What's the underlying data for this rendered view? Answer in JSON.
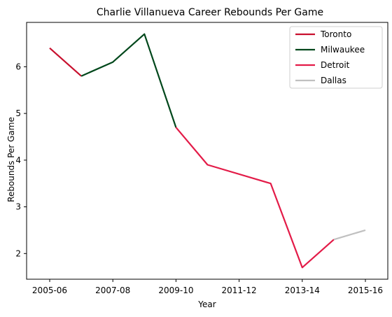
{
  "chart_data": {
    "type": "line",
    "title": "Charlie Villanueva Career Rebounds Per Game",
    "xlabel": "Year",
    "ylabel": "Rebounds Per Game",
    "x_tick_labels": [
      "2005-06",
      "2007-08",
      "2009-10",
      "2011-12",
      "2013-14",
      "2015-16"
    ],
    "y_ticks": [
      2,
      3,
      4,
      5,
      6
    ],
    "ylim": [
      1.45,
      6.95
    ],
    "legend_position": "top-right",
    "series": [
      {
        "name": "Toronto",
        "color": "#c8102e",
        "points": [
          {
            "x": "2005-06",
            "y": 6.4
          },
          {
            "x": "2006-07",
            "y": 5.8
          }
        ]
      },
      {
        "name": "Milwaukee",
        "color": "#00471b",
        "points": [
          {
            "x": "2006-07",
            "y": 5.8
          },
          {
            "x": "2007-08",
            "y": 6.1
          },
          {
            "x": "2008-09",
            "y": 6.7
          },
          {
            "x": "2009-10",
            "y": 4.7
          }
        ]
      },
      {
        "name": "Detroit",
        "color": "#e31b48",
        "points": [
          {
            "x": "2009-10",
            "y": 4.7
          },
          {
            "x": "2010-11",
            "y": 3.9
          },
          {
            "x": "2012-13",
            "y": 3.5
          },
          {
            "x": "2013-14",
            "y": 1.7
          },
          {
            "x": "2014-15",
            "y": 2.3
          }
        ]
      },
      {
        "name": "Dallas",
        "color": "#c0c0c0",
        "points": [
          {
            "x": "2014-15",
            "y": 2.3
          },
          {
            "x": "2015-16",
            "y": 2.5
          }
        ]
      }
    ]
  }
}
